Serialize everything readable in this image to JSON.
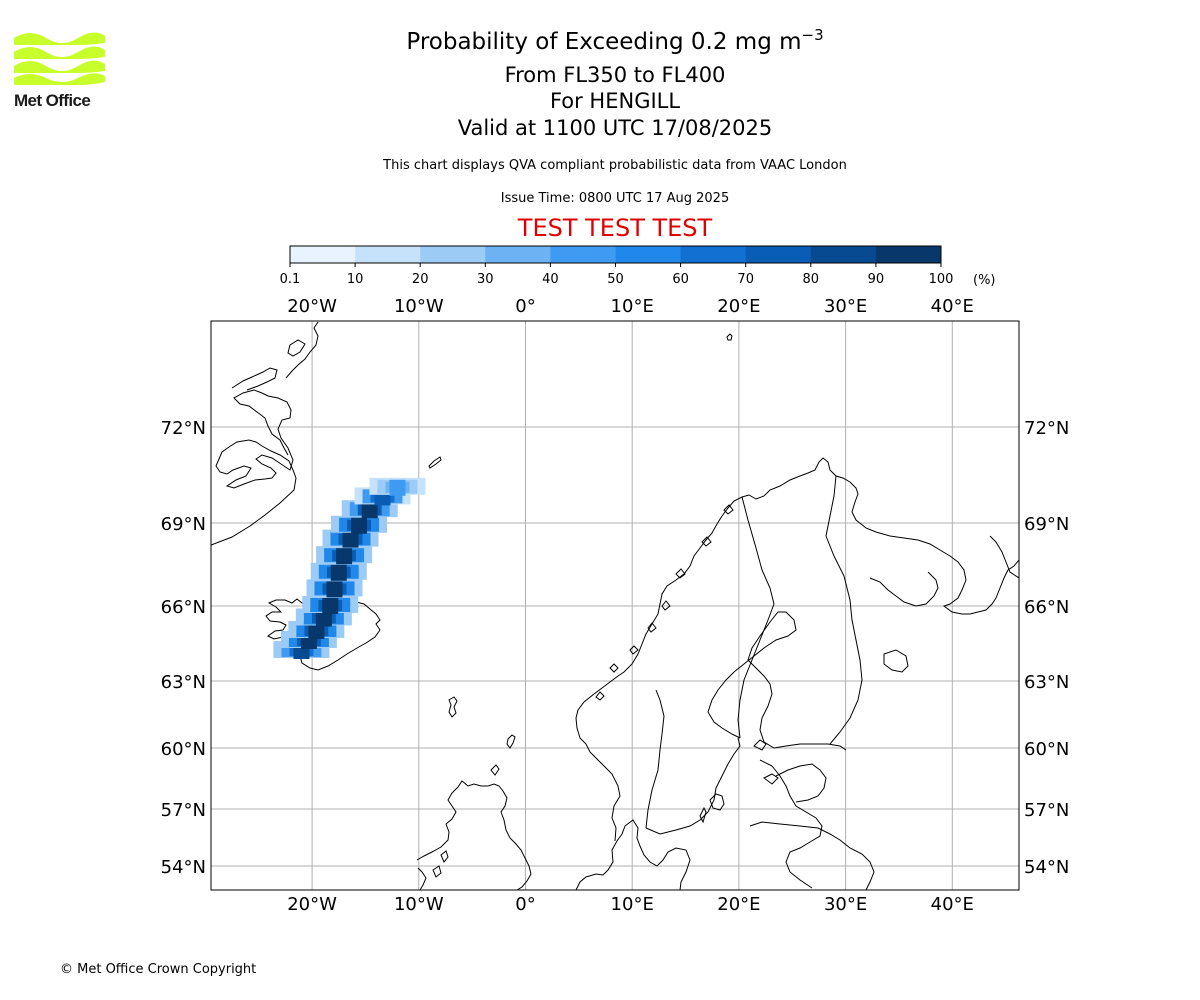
{
  "logo": {
    "text": "Met Office",
    "color": "#c8ff2a"
  },
  "title": {
    "main": "Probability of Exceeding 0.2 mg m",
    "superscript": "−3"
  },
  "subtitles": [
    "From FL350 to FL400",
    "For HENGILL",
    "Valid at 1100 UTC 17/08/2025"
  ],
  "description": "This chart displays QVA compliant probabilistic data from VAAC London",
  "issue_time": "Issue Time: 0800 UTC 17 Aug 2025",
  "test_banner": {
    "text": "TEST TEST TEST",
    "color": "#e00000"
  },
  "colorbar": {
    "ticks": [
      "0.1",
      "10",
      "20",
      "30",
      "40",
      "50",
      "60",
      "70",
      "80",
      "90",
      "100"
    ],
    "unit": "(%)",
    "colors": [
      "#e8f3ff",
      "#c6e2fb",
      "#9ccbf6",
      "#6db3f4",
      "#3f9bf1",
      "#1f88ea",
      "#1170d2",
      "#0a5db4",
      "#084a91",
      "#07376b",
      "#062a52"
    ]
  },
  "map": {
    "lon_labels": [
      "20°W",
      "10°W",
      "0°",
      "10°E",
      "20°E",
      "30°E",
      "40°E"
    ],
    "lat_labels": [
      "72°N",
      "69°N",
      "66°N",
      "63°N",
      "60°N",
      "57°N",
      "54°N"
    ],
    "gridlines": true
  },
  "plume": {
    "type": "heatmap",
    "description_units": "probability %",
    "max_probability_percent": 100,
    "source": "HENGILL",
    "cells": [
      {
        "lon": -21.0,
        "lat": 64.2,
        "p": 85
      },
      {
        "lon": -20.3,
        "lat": 64.6,
        "p": 95
      },
      {
        "lon": -19.6,
        "lat": 65.0,
        "p": 95
      },
      {
        "lon": -18.9,
        "lat": 65.5,
        "p": 95
      },
      {
        "lon": -18.3,
        "lat": 66.0,
        "p": 95
      },
      {
        "lon": -17.9,
        "lat": 66.6,
        "p": 95
      },
      {
        "lon": -17.5,
        "lat": 67.2,
        "p": 95
      },
      {
        "lon": -17.0,
        "lat": 67.8,
        "p": 95
      },
      {
        "lon": -16.4,
        "lat": 68.4,
        "p": 95
      },
      {
        "lon": -15.6,
        "lat": 68.9,
        "p": 95
      },
      {
        "lon": -14.6,
        "lat": 69.4,
        "p": 90
      },
      {
        "lon": -13.4,
        "lat": 69.8,
        "p": 75
      },
      {
        "lon": -12.0,
        "lat": 70.1,
        "p": 40
      }
    ]
  },
  "copyright": "© Met Office Crown Copyright"
}
